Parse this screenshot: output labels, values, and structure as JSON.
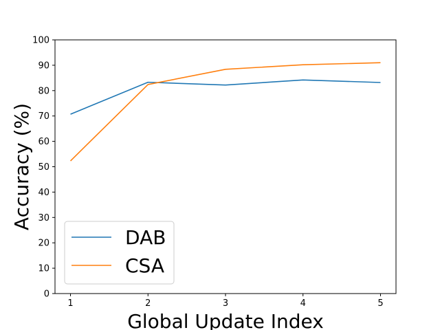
{
  "chart_data": {
    "type": "line",
    "x": [
      1,
      2,
      3,
      4,
      5
    ],
    "series": [
      {
        "name": "DAB",
        "values": [
          70.7,
          83.3,
          82.2,
          84.2,
          83.2
        ],
        "color": "#1f77b4"
      },
      {
        "name": "CSA",
        "values": [
          52.3,
          82.4,
          88.4,
          90.2,
          91.0
        ],
        "color": "#ff7f0e"
      }
    ],
    "xlabel": "Global Update Index",
    "ylabel": "Accuracy (%)",
    "xlim": [
      0.8,
      5.2
    ],
    "ylim": [
      0,
      100
    ],
    "xticks": [
      1,
      2,
      3,
      4,
      5
    ],
    "yticks": [
      0,
      10,
      20,
      30,
      40,
      50,
      60,
      70,
      80,
      90,
      100
    ],
    "grid": false,
    "legend": "lower-left"
  }
}
